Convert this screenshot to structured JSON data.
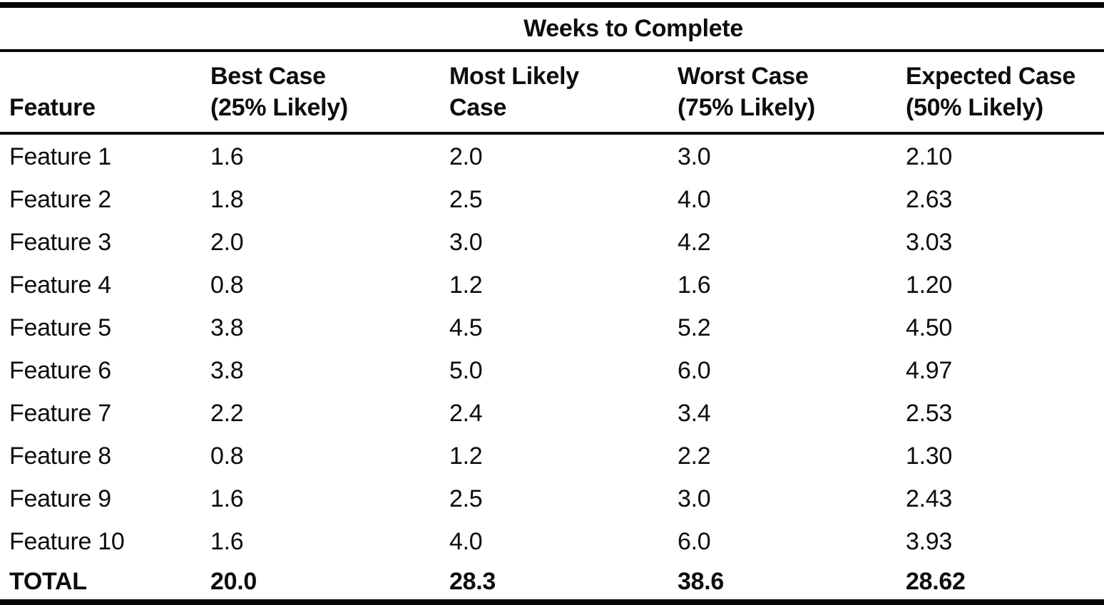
{
  "colors": {
    "ink": "#0d0d0d",
    "paper": "#ffffff"
  },
  "table": {
    "span_header": "Weeks to Complete",
    "columns": [
      {
        "line1": "",
        "line2": "Feature"
      },
      {
        "line1": "Best Case",
        "line2": "(25% Likely)"
      },
      {
        "line1": "Most Likely",
        "line2": "Case"
      },
      {
        "line1": "Worst Case",
        "line2": "(75% Likely)"
      },
      {
        "line1": "Expected Case",
        "line2": "(50% Likely)"
      }
    ],
    "rows": [
      {
        "feature": "Feature 1",
        "best": "1.6",
        "likely": "2.0",
        "worst": "3.0",
        "expected": "2.10"
      },
      {
        "feature": "Feature 2",
        "best": "1.8",
        "likely": "2.5",
        "worst": "4.0",
        "expected": "2.63"
      },
      {
        "feature": "Feature 3",
        "best": "2.0",
        "likely": "3.0",
        "worst": "4.2",
        "expected": "3.03"
      },
      {
        "feature": "Feature 4",
        "best": "0.8",
        "likely": "1.2",
        "worst": "1.6",
        "expected": "1.20"
      },
      {
        "feature": "Feature 5",
        "best": "3.8",
        "likely": "4.5",
        "worst": "5.2",
        "expected": "4.50"
      },
      {
        "feature": "Feature 6",
        "best": "3.8",
        "likely": "5.0",
        "worst": "6.0",
        "expected": "4.97"
      },
      {
        "feature": "Feature 7",
        "best": "2.2",
        "likely": "2.4",
        "worst": "3.4",
        "expected": "2.53"
      },
      {
        "feature": "Feature 8",
        "best": "0.8",
        "likely": "1.2",
        "worst": "2.2",
        "expected": "1.30"
      },
      {
        "feature": "Feature 9",
        "best": "1.6",
        "likely": "2.5",
        "worst": "3.0",
        "expected": "2.43"
      },
      {
        "feature": "Feature 10",
        "best": "1.6",
        "likely": "4.0",
        "worst": "6.0",
        "expected": "3.93"
      }
    ],
    "total": {
      "label": "TOTAL",
      "best": "20.0",
      "likely": "28.3",
      "worst": "38.6",
      "expected": "28.62"
    }
  },
  "chart_data": {
    "type": "table",
    "title": "Weeks to Complete",
    "columns": [
      "Feature",
      "Best Case (25% Likely)",
      "Most Likely Case",
      "Worst Case (75% Likely)",
      "Expected Case (50% Likely)"
    ],
    "rows": [
      [
        "Feature 1",
        1.6,
        2.0,
        3.0,
        2.1
      ],
      [
        "Feature 2",
        1.8,
        2.5,
        4.0,
        2.63
      ],
      [
        "Feature 3",
        2.0,
        3.0,
        4.2,
        3.03
      ],
      [
        "Feature 4",
        0.8,
        1.2,
        1.6,
        1.2
      ],
      [
        "Feature 5",
        3.8,
        4.5,
        5.2,
        4.5
      ],
      [
        "Feature 6",
        3.8,
        5.0,
        6.0,
        4.97
      ],
      [
        "Feature 7",
        2.2,
        2.4,
        3.4,
        2.53
      ],
      [
        "Feature 8",
        0.8,
        1.2,
        2.2,
        1.3
      ],
      [
        "Feature 9",
        1.6,
        2.5,
        3.0,
        2.43
      ],
      [
        "Feature 10",
        1.6,
        4.0,
        6.0,
        3.93
      ]
    ],
    "total_row": [
      "TOTAL",
      20.0,
      28.3,
      38.6,
      28.62
    ]
  }
}
